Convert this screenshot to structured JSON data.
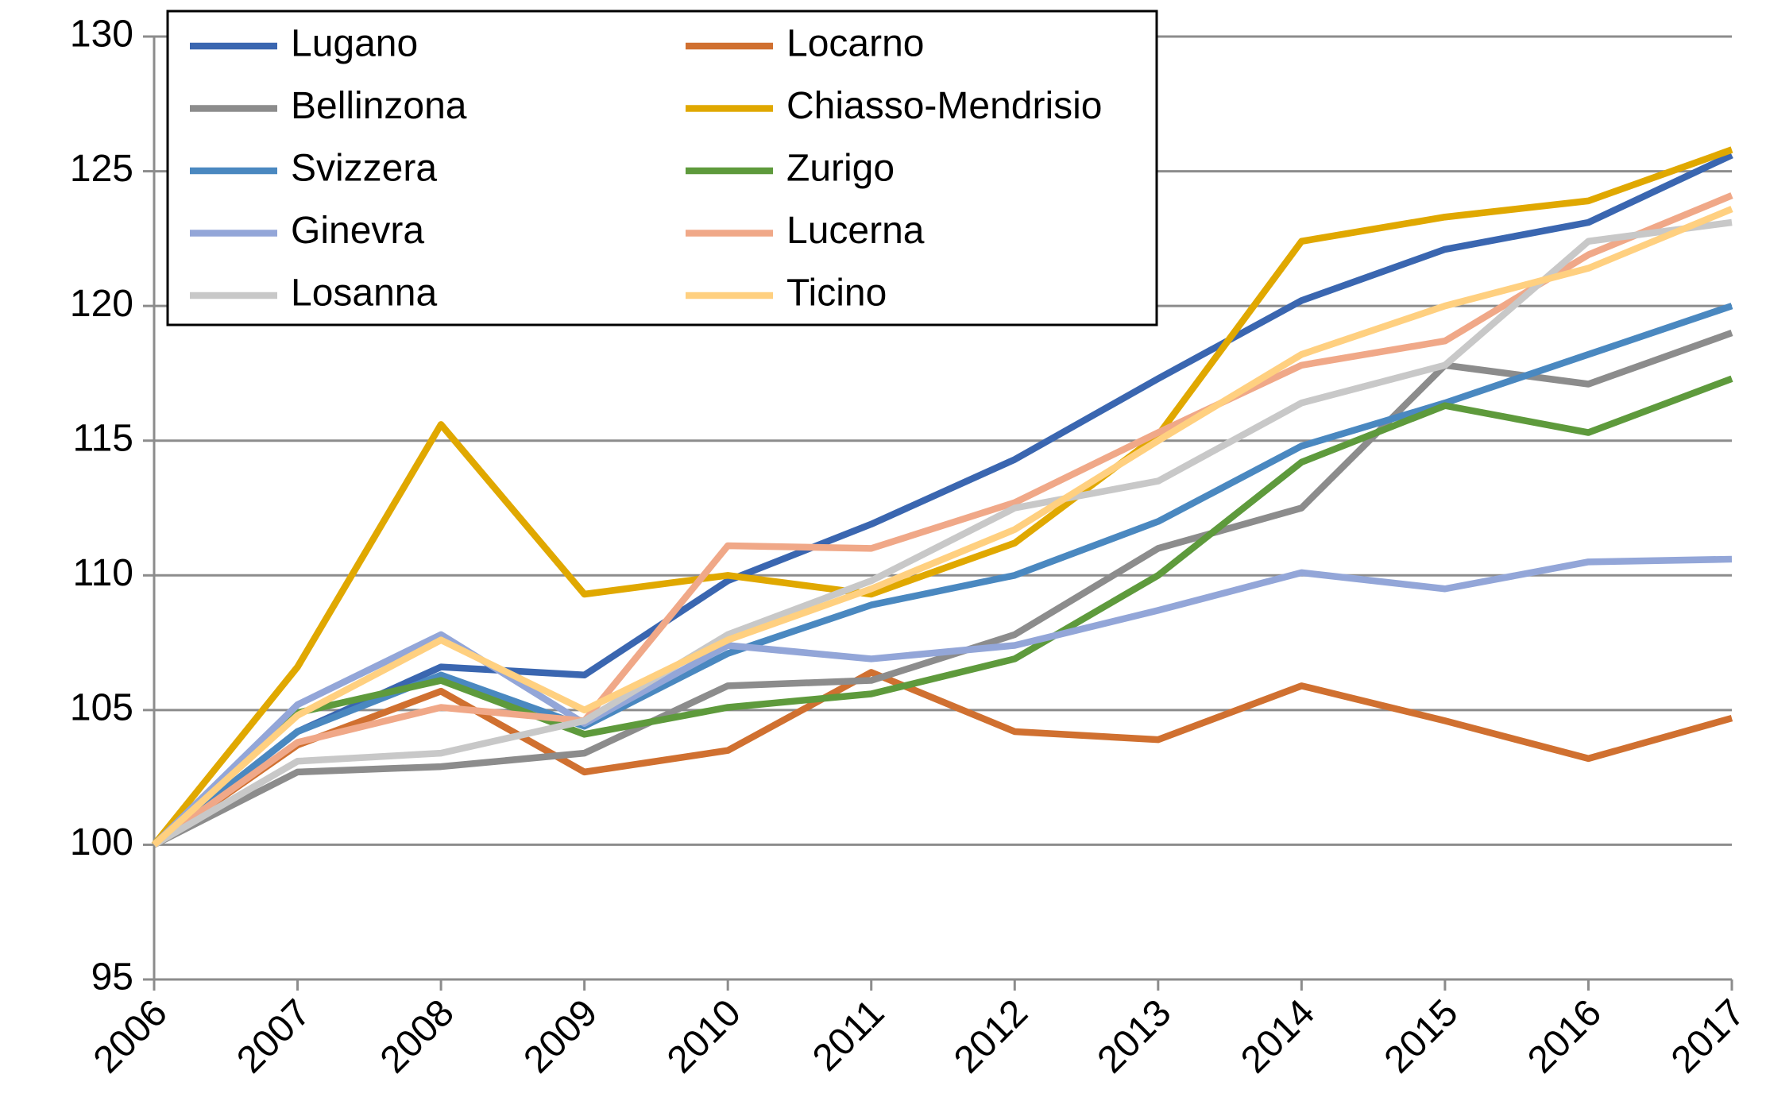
{
  "chart_data": {
    "type": "line",
    "categories": [
      "2006",
      "2007",
      "2008",
      "2009",
      "2010",
      "2011",
      "2012",
      "2013",
      "2014",
      "2015",
      "2016",
      "2017"
    ],
    "series": [
      {
        "name": "Lugano",
        "color": "#3a66b0",
        "values": [
          100,
          104.2,
          106.6,
          106.3,
          109.8,
          111.9,
          114.3,
          117.3,
          120.2,
          122.1,
          123.1,
          125.6
        ]
      },
      {
        "name": "Locarno",
        "color": "#d07030",
        "values": [
          100,
          103.7,
          105.7,
          102.7,
          103.5,
          106.4,
          104.2,
          103.9,
          105.9,
          104.6,
          103.2,
          104.7
        ]
      },
      {
        "name": "Bellinzona",
        "color": "#8c8c8c",
        "values": [
          100,
          102.7,
          102.9,
          103.4,
          105.9,
          106.1,
          107.8,
          111.0,
          112.5,
          117.8,
          117.1,
          119.0
        ]
      },
      {
        "name": "Chiasso-Mendrisio",
        "color": "#e0a800",
        "values": [
          100,
          106.6,
          115.6,
          109.3,
          110.0,
          109.3,
          111.2,
          115.2,
          122.4,
          123.3,
          123.9,
          125.8
        ]
      },
      {
        "name": "Svizzera",
        "color": "#4a88c0",
        "values": [
          100,
          104.2,
          106.3,
          104.4,
          107.1,
          108.9,
          110.0,
          112.0,
          114.8,
          116.4,
          118.2,
          120.0
        ]
      },
      {
        "name": "Zurigo",
        "color": "#5e9a3c",
        "values": [
          100,
          104.9,
          106.1,
          104.1,
          105.1,
          105.6,
          106.9,
          110.0,
          114.2,
          116.3,
          115.3,
          117.3
        ]
      },
      {
        "name": "Ginevra",
        "color": "#93a6d8",
        "values": [
          100,
          105.2,
          107.8,
          104.5,
          107.4,
          106.9,
          107.4,
          108.7,
          110.1,
          109.5,
          110.5,
          110.6
        ]
      },
      {
        "name": "Lucerna",
        "color": "#f0a888",
        "values": [
          100,
          103.8,
          105.1,
          104.6,
          111.1,
          111.0,
          112.7,
          115.3,
          117.8,
          118.7,
          121.9,
          124.1
        ]
      },
      {
        "name": "Losanna",
        "color": "#c8c8c8",
        "values": [
          100,
          103.1,
          103.4,
          104.6,
          107.8,
          109.8,
          112.5,
          113.5,
          116.4,
          117.8,
          122.4,
          123.1
        ]
      },
      {
        "name": "Ticino",
        "color": "#ffd080",
        "values": [
          100,
          104.8,
          107.6,
          105.0,
          107.6,
          109.5,
          111.7,
          115.0,
          118.2,
          120.0,
          121.4,
          123.6
        ]
      }
    ],
    "ylim": [
      95,
      130
    ],
    "yticks": [
      95,
      100,
      105,
      110,
      115,
      120,
      125,
      130
    ],
    "grid": true,
    "legend": "upper left"
  }
}
